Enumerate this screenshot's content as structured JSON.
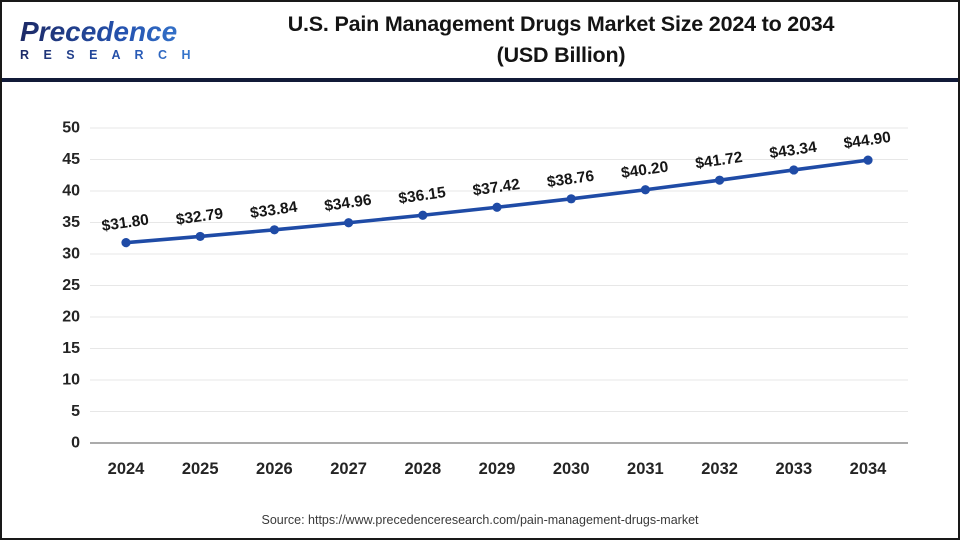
{
  "header": {
    "logo_line1": "Precedence",
    "logo_line2": "R E S E A R C H",
    "title_line1": "U.S. Pain Management Drugs Market Size 2024 to 2034",
    "title_line2": "(USD Billion)"
  },
  "chart_data": {
    "type": "line",
    "title": "U.S. Pain Management Drugs Market Size 2024 to 2034 (USD Billion)",
    "categories": [
      "2024",
      "2025",
      "2026",
      "2027",
      "2028",
      "2029",
      "2030",
      "2031",
      "2032",
      "2033",
      "2034"
    ],
    "values": [
      31.8,
      32.79,
      33.84,
      34.96,
      36.15,
      37.42,
      38.76,
      40.2,
      41.72,
      43.34,
      44.9
    ],
    "point_labels": [
      "$31.80",
      "$32.79",
      "$33.84",
      "$34.96",
      "$36.15",
      "$37.42",
      "$38.76",
      "$40.20",
      "$41.72",
      "$43.34",
      "$44.90"
    ],
    "xlabel": "",
    "ylabel": "",
    "ylim": [
      0,
      50
    ],
    "ytick_step": 5,
    "yticks": [
      "0",
      "5",
      "10",
      "15",
      "20",
      "25",
      "30",
      "35",
      "40",
      "45",
      "50"
    ],
    "grid": true,
    "legend_position": "none",
    "line_color": "#1f4ba6",
    "marker_color": "#1f4ba6",
    "grid_color": "#e7e7e7",
    "axis_line_color": "#ababab",
    "tick_label_color": "#242424",
    "data_label_color": "#161616"
  },
  "footer": {
    "source": "Source: https://www.precedenceresearch.com/pain-management-drugs-market"
  }
}
